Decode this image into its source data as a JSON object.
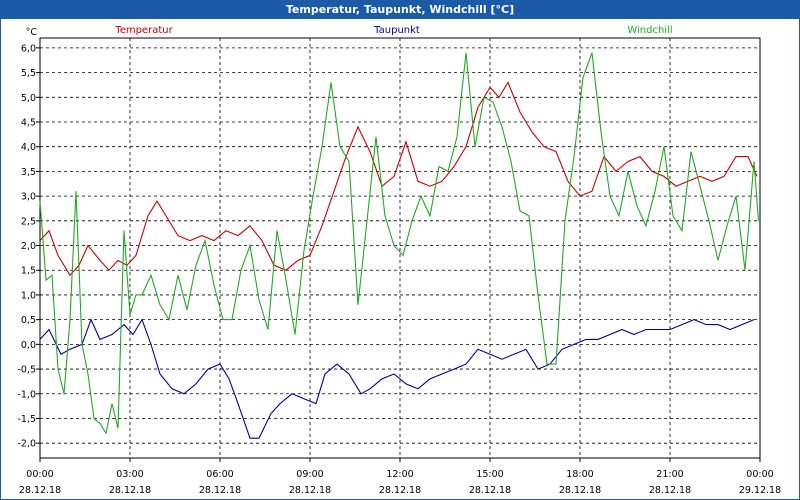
{
  "window": {
    "title": "Temperatur, Taupunkt, Windchill [°C]"
  },
  "chart_data": {
    "type": "line",
    "title": "Temperatur, Taupunkt, Windchill [°C]",
    "ylabel": "°C",
    "ylim": [
      -2.3,
      6.2
    ],
    "yticks": [
      "6,0",
      "5,5",
      "5,0",
      "4,5",
      "4,0",
      "3,5",
      "3,0",
      "2,5",
      "2,0",
      "1,5",
      "1,0",
      "0,5",
      "0,0",
      "-0,5",
      "-1,0",
      "-1,5",
      "-2,0"
    ],
    "ytick_values": [
      6.0,
      5.5,
      5.0,
      4.5,
      4.0,
      3.5,
      3.0,
      2.5,
      2.0,
      1.5,
      1.0,
      0.5,
      0.0,
      -0.5,
      -1.0,
      -1.5,
      -2.0
    ],
    "xticks": [
      {
        "time": "00:00",
        "date": "28.12.18"
      },
      {
        "time": "03:00",
        "date": "28.12.18"
      },
      {
        "time": "06:00",
        "date": "28.12.18"
      },
      {
        "time": "09:00",
        "date": "28.12.18"
      },
      {
        "time": "12:00",
        "date": "28.12.18"
      },
      {
        "time": "15:00",
        "date": "28.12.18"
      },
      {
        "time": "18:00",
        "date": "28.12.18"
      },
      {
        "time": "21:00",
        "date": "28.12.18"
      },
      {
        "time": "00:00",
        "date": "29.12.18"
      }
    ],
    "grid": true,
    "legend": "top",
    "series": [
      {
        "name": "Temperatur",
        "color": "#cc0000",
        "x_hours": [
          0,
          0.3,
          0.6,
          1,
          1.3,
          1.6,
          2,
          2.3,
          2.6,
          2.9,
          3.2,
          3.6,
          3.9,
          4.2,
          4.6,
          5,
          5.4,
          5.8,
          6.2,
          6.6,
          7,
          7.4,
          7.8,
          8.2,
          8.6,
          9,
          9.4,
          9.8,
          10.2,
          10.6,
          11,
          11.4,
          11.8,
          12.2,
          12.6,
          13,
          13.4,
          13.8,
          14.2,
          14.6,
          15,
          15.3,
          15.6,
          16,
          16.4,
          16.8,
          17.2,
          17.6,
          18,
          18.4,
          18.8,
          19.2,
          19.6,
          20,
          20.4,
          20.8,
          21.2,
          21.6,
          22,
          22.4,
          22.8,
          23.2,
          23.6,
          23.9
        ],
        "values": [
          2.1,
          2.3,
          1.8,
          1.4,
          1.6,
          2.0,
          1.7,
          1.5,
          1.7,
          1.6,
          1.8,
          2.6,
          2.9,
          2.6,
          2.2,
          2.1,
          2.2,
          2.1,
          2.3,
          2.2,
          2.4,
          2.1,
          1.6,
          1.5,
          1.7,
          1.8,
          2.4,
          3.1,
          3.8,
          4.4,
          3.9,
          3.2,
          3.4,
          4.1,
          3.3,
          3.2,
          3.3,
          3.6,
          4.0,
          4.8,
          5.2,
          5.0,
          5.3,
          4.7,
          4.3,
          4.0,
          3.9,
          3.3,
          3.0,
          3.1,
          3.8,
          3.5,
          3.7,
          3.8,
          3.5,
          3.4,
          3.2,
          3.3,
          3.4,
          3.3,
          3.4,
          3.8,
          3.8,
          3.4
        ]
      },
      {
        "name": "Taupunkt",
        "color": "#000099",
        "x_hours": [
          0,
          0.3,
          0.7,
          1,
          1.4,
          1.7,
          2,
          2.4,
          2.8,
          3.1,
          3.4,
          3.7,
          4,
          4.4,
          4.8,
          5.2,
          5.6,
          6,
          6.3,
          6.6,
          7,
          7.3,
          7.7,
          8,
          8.4,
          8.8,
          9.2,
          9.5,
          9.9,
          10.3,
          10.7,
          11,
          11.4,
          11.8,
          12.2,
          12.6,
          13,
          13.4,
          13.8,
          14.2,
          14.6,
          15,
          15.4,
          15.8,
          16.2,
          16.6,
          17,
          17.4,
          17.8,
          18.2,
          18.6,
          19,
          19.4,
          19.8,
          20.2,
          20.6,
          21,
          21.4,
          21.8,
          22.2,
          22.6,
          23,
          23.4,
          23.8
        ],
        "values": [
          0.1,
          0.3,
          -0.2,
          -0.1,
          0.0,
          0.5,
          0.1,
          0.2,
          0.4,
          0.2,
          0.5,
          0.0,
          -0.6,
          -0.9,
          -1.0,
          -0.8,
          -0.5,
          -0.4,
          -0.7,
          -1.2,
          -1.9,
          -1.9,
          -1.4,
          -1.2,
          -1.0,
          -1.1,
          -1.2,
          -0.6,
          -0.4,
          -0.6,
          -1.0,
          -0.9,
          -0.7,
          -0.6,
          -0.8,
          -0.9,
          -0.7,
          -0.6,
          -0.5,
          -0.4,
          -0.1,
          -0.2,
          -0.3,
          -0.2,
          -0.1,
          -0.5,
          -0.4,
          -0.1,
          0.0,
          0.1,
          0.1,
          0.2,
          0.3,
          0.2,
          0.3,
          0.3,
          0.3,
          0.4,
          0.5,
          0.4,
          0.4,
          0.3,
          0.4,
          0.5
        ]
      },
      {
        "name": "Windchill",
        "color": "#22aa22",
        "x_hours": [
          0,
          0.2,
          0.4,
          0.6,
          0.8,
          1,
          1.2,
          1.4,
          1.6,
          1.8,
          2,
          2.2,
          2.4,
          2.6,
          2.8,
          3,
          3.2,
          3.4,
          3.7,
          4,
          4.3,
          4.6,
          4.9,
          5.2,
          5.5,
          5.8,
          6.1,
          6.4,
          6.7,
          7,
          7.3,
          7.6,
          7.9,
          8.2,
          8.5,
          8.8,
          9.1,
          9.4,
          9.7,
          10,
          10.3,
          10.6,
          10.9,
          11.2,
          11.5,
          11.8,
          12.1,
          12.4,
          12.7,
          13,
          13.3,
          13.6,
          13.9,
          14.2,
          14.5,
          14.8,
          15.1,
          15.4,
          15.7,
          16,
          16.3,
          16.6,
          16.9,
          17.2,
          17.5,
          17.8,
          18.1,
          18.4,
          18.7,
          19,
          19.3,
          19.6,
          19.9,
          20.2,
          20.5,
          20.8,
          21.1,
          21.4,
          21.7,
          22,
          22.3,
          22.6,
          22.9,
          23.2,
          23.5,
          23.8,
          23.95
        ],
        "values": [
          2.9,
          1.3,
          1.4,
          -0.5,
          -1.0,
          0.5,
          3.1,
          0.0,
          -0.6,
          -1.5,
          -1.6,
          -1.8,
          -1.2,
          -1.7,
          2.3,
          0.6,
          1.0,
          1.0,
          1.4,
          0.8,
          0.5,
          1.4,
          0.7,
          1.6,
          2.1,
          1.2,
          0.5,
          0.5,
          1.5,
          2.0,
          0.9,
          0.3,
          2.3,
          1.3,
          0.2,
          1.9,
          3.0,
          4.0,
          5.3,
          4.0,
          3.7,
          0.8,
          2.5,
          4.2,
          2.6,
          2.0,
          1.8,
          2.5,
          3.0,
          2.6,
          3.6,
          3.5,
          4.2,
          5.9,
          4.0,
          5.0,
          4.9,
          4.4,
          3.7,
          2.7,
          2.6,
          1.0,
          -0.4,
          -0.4,
          2.5,
          3.8,
          5.4,
          5.9,
          4.3,
          3.0,
          2.6,
          3.5,
          2.8,
          2.4,
          3.1,
          4.0,
          2.6,
          2.3,
          3.9,
          3.2,
          2.5,
          1.7,
          2.4,
          3.0,
          1.5,
          3.7,
          2.5
        ],
        "_unused": false
      }
    ]
  }
}
